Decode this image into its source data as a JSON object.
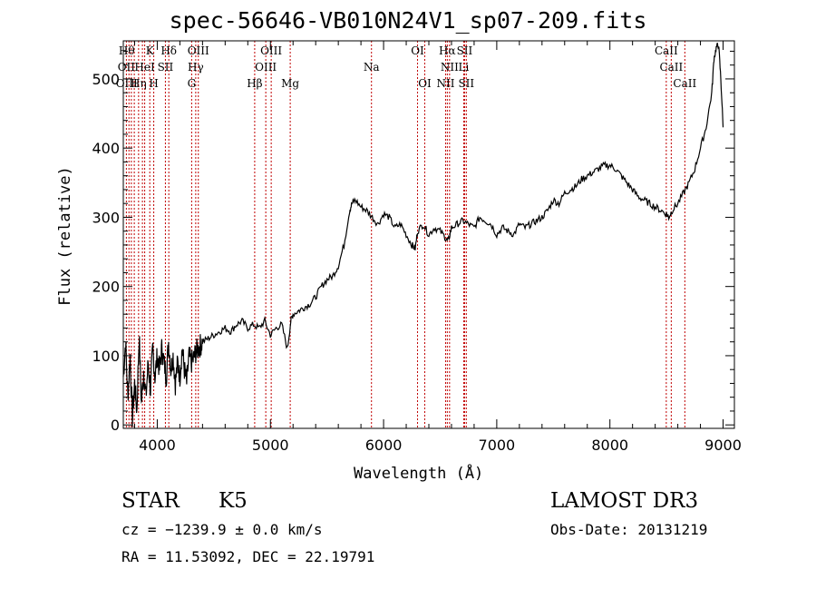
{
  "chart_data": {
    "type": "line",
    "title": "spec-56646-VB010N24V1_sp07-209.fits",
    "xlabel": "Wavelength (Å)",
    "ylabel": "Flux (relative)",
    "xlim": [
      3700,
      9100
    ],
    "ylim": [
      -5,
      555
    ],
    "xticks": [
      4000,
      5000,
      6000,
      7000,
      8000,
      9000
    ],
    "yticks": [
      0,
      100,
      200,
      300,
      400,
      500
    ],
    "series": [
      {
        "name": "spectrum",
        "x": [
          3700,
          3720,
          3740,
          3760,
          3780,
          3800,
          3820,
          3840,
          3860,
          3880,
          3900,
          3920,
          3940,
          3960,
          3980,
          4000,
          4020,
          4040,
          4060,
          4080,
          4100,
          4120,
          4140,
          4160,
          4180,
          4200,
          4220,
          4240,
          4260,
          4280,
          4300,
          4320,
          4340,
          4360,
          4380,
          4400,
          4450,
          4500,
          4550,
          4600,
          4650,
          4700,
          4750,
          4800,
          4850,
          4900,
          4950,
          5000,
          5050,
          5100,
          5150,
          5180,
          5200,
          5250,
          5300,
          5350,
          5400,
          5450,
          5500,
          5550,
          5600,
          5650,
          5700,
          5720,
          5750,
          5800,
          5850,
          5900,
          5950,
          6000,
          6050,
          6100,
          6150,
          6200,
          6250,
          6280,
          6300,
          6350,
          6400,
          6450,
          6500,
          6550,
          6570,
          6600,
          6650,
          6700,
          6750,
          6800,
          6850,
          6900,
          6950,
          7000,
          7050,
          7100,
          7150,
          7200,
          7250,
          7300,
          7350,
          7400,
          7450,
          7500,
          7550,
          7600,
          7650,
          7700,
          7750,
          7800,
          7850,
          7900,
          7950,
          8000,
          8050,
          8100,
          8150,
          8200,
          8250,
          8300,
          8350,
          8400,
          8450,
          8500,
          8520,
          8550,
          8600,
          8650,
          8700,
          8750,
          8800,
          8850,
          8900,
          8920,
          8940,
          8960,
          8980,
          9000
        ],
        "y": [
          70,
          120,
          40,
          100,
          10,
          60,
          20,
          130,
          30,
          80,
          40,
          90,
          50,
          110,
          70,
          100,
          80,
          110,
          90,
          70,
          120,
          80,
          100,
          60,
          90,
          70,
          110,
          80,
          60,
          100,
          90,
          95,
          105,
          110,
          115,
          120,
          125,
          130,
          135,
          140,
          135,
          145,
          150,
          140,
          145,
          140,
          150,
          130,
          140,
          145,
          110,
          150,
          160,
          165,
          170,
          175,
          185,
          200,
          210,
          215,
          230,
          260,
          310,
          320,
          325,
          315,
          310,
          300,
          290,
          305,
          300,
          285,
          290,
          275,
          260,
          255,
          280,
          290,
          275,
          285,
          280,
          270,
          265,
          285,
          290,
          295,
          290,
          285,
          300,
          295,
          290,
          275,
          285,
          280,
          275,
          290,
          285,
          290,
          295,
          300,
          310,
          325,
          320,
          335,
          340,
          345,
          355,
          360,
          365,
          370,
          375,
          375,
          370,
          360,
          350,
          340,
          330,
          325,
          320,
          315,
          310,
          305,
          300,
          310,
          320,
          335,
          350,
          370,
          400,
          430,
          480,
          530,
          545,
          550,
          500,
          430
        ]
      }
    ],
    "lines": [
      {
        "wl": 3727,
        "label": "OII"
      },
      {
        "wl": 3750,
        "label": "Hθ"
      },
      {
        "wl": 3771,
        "label": "OIII"
      },
      {
        "wl": 3797,
        "label": "Hη"
      },
      {
        "wl": 3835,
        "label": "Hη"
      },
      {
        "wl": 3869,
        "label": "OIII"
      },
      {
        "wl": 3889,
        "label": "HeI"
      },
      {
        "wl": 3934,
        "label": "K"
      },
      {
        "wl": 3969,
        "label": "H"
      },
      {
        "wl": 4072,
        "label": "SII"
      },
      {
        "wl": 4102,
        "label": "Hδ"
      },
      {
        "wl": 4304,
        "label": "G"
      },
      {
        "wl": 4340,
        "label": "Hγ"
      },
      {
        "wl": 4363,
        "label": "OIII"
      },
      {
        "wl": 4861,
        "label": "Hβ"
      },
      {
        "wl": 4959,
        "label": "OIII"
      },
      {
        "wl": 5007,
        "label": "OIII"
      },
      {
        "wl": 5175,
        "label": "Mg"
      },
      {
        "wl": 5893,
        "label": "Na"
      },
      {
        "wl": 6300,
        "label": "OI"
      },
      {
        "wl": 6364,
        "label": "OI"
      },
      {
        "wl": 6548,
        "label": "NII"
      },
      {
        "wl": 6563,
        "label": "Hα"
      },
      {
        "wl": 6583,
        "label": "NII"
      },
      {
        "wl": 6708,
        "label": "Li"
      },
      {
        "wl": 6716,
        "label": "SII"
      },
      {
        "wl": 6731,
        "label": "SII"
      },
      {
        "wl": 8498,
        "label": "CaII"
      },
      {
        "wl": 8542,
        "label": "CaII"
      },
      {
        "wl": 8662,
        "label": "CaII"
      }
    ]
  },
  "labels_rendered": [
    {
      "text": "Hθ",
      "wl": 3730,
      "row": 1
    },
    {
      "text": "K",
      "wl": 3934,
      "row": 1
    },
    {
      "text": "Hδ",
      "wl": 4102,
      "row": 1
    },
    {
      "text": "OIII",
      "wl": 4363,
      "row": 1
    },
    {
      "text": "OIII",
      "wl": 5007,
      "row": 1
    },
    {
      "text": "OI",
      "wl": 6300,
      "row": 1
    },
    {
      "text": "Hα",
      "wl": 6563,
      "row": 1
    },
    {
      "text": "SII",
      "wl": 6716,
      "row": 1
    },
    {
      "text": "CaII",
      "wl": 8498,
      "row": 1
    },
    {
      "text": "OII",
      "wl": 3727,
      "row": 2
    },
    {
      "text": "HeI",
      "wl": 3889,
      "row": 2
    },
    {
      "text": "SII",
      "wl": 4072,
      "row": 2
    },
    {
      "text": "Hγ",
      "wl": 4340,
      "row": 2
    },
    {
      "text": "OIII",
      "wl": 4959,
      "row": 2
    },
    {
      "text": "Na",
      "wl": 5893,
      "row": 2
    },
    {
      "text": "NII",
      "wl": 6583,
      "row": 2
    },
    {
      "text": "Li",
      "wl": 6708,
      "row": 2
    },
    {
      "text": "CaII",
      "wl": 8542,
      "row": 2
    },
    {
      "text": "OIII",
      "wl": 3730,
      "row": 3
    },
    {
      "text": "Hη",
      "wl": 3835,
      "row": 3
    },
    {
      "text": "H",
      "wl": 3969,
      "row": 3
    },
    {
      "text": "G",
      "wl": 4304,
      "row": 3
    },
    {
      "text": "Hβ",
      "wl": 4861,
      "row": 3
    },
    {
      "text": "Mg",
      "wl": 5175,
      "row": 3
    },
    {
      "text": "OI",
      "wl": 6364,
      "row": 3
    },
    {
      "text": "NII",
      "wl": 6548,
      "row": 3
    },
    {
      "text": "SII",
      "wl": 6731,
      "row": 3
    },
    {
      "text": "CaII",
      "wl": 8662,
      "row": 3
    }
  ],
  "info": {
    "class": "STAR",
    "subclass": "K5",
    "survey": "LAMOST DR3",
    "cz": "cz = −1239.9 ± 0.0 km/s",
    "obs_date": "Obs-Date: 20131219",
    "coords": "RA =  11.53092, DEC =  22.19791"
  },
  "colors": {
    "axes": "#000000",
    "spectrum": "#000000",
    "lines": "#c00000"
  }
}
